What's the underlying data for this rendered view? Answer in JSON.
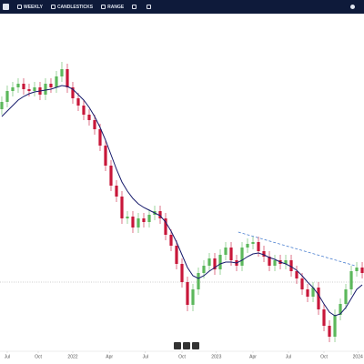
{
  "toolbar": [
    "WEEKLY",
    "CANDLESTICKS",
    "RANGE"
  ],
  "chart_data": {
    "type": "candlestick",
    "up_color": "#5cb85c",
    "down_color": "#c8173a",
    "ma_color": "#161a6b",
    "trend_color": "#4a7fd0",
    "reference_color": "#999999",
    "ylim": [
      15,
      385
    ],
    "xlim": [
      -0.33,
      66.33
    ],
    "xticks": [
      {
        "value": 1,
        "label": "Jul"
      },
      {
        "value": 6.67,
        "label": "Oct"
      },
      {
        "value": 13,
        "label": "2022"
      },
      {
        "value": 19.7,
        "label": "Apr"
      },
      {
        "value": 26.3,
        "label": "Jul"
      },
      {
        "value": 33,
        "label": "Oct"
      },
      {
        "value": 39.3,
        "label": "2023"
      },
      {
        "value": 46,
        "label": "Apr"
      },
      {
        "value": 52.5,
        "label": "Jul"
      },
      {
        "value": 59,
        "label": "Oct"
      },
      {
        "value": 65.2,
        "label": "2024"
      }
    ],
    "candles": [
      [
        280,
        294,
        274,
        288
      ],
      [
        288,
        306,
        282,
        300
      ],
      [
        300,
        310,
        294,
        304
      ],
      [
        304,
        314,
        298,
        308
      ],
      [
        308,
        314,
        296,
        302
      ],
      [
        302,
        308,
        294,
        300
      ],
      [
        300,
        310,
        294,
        304
      ],
      [
        304,
        310,
        290,
        296
      ],
      [
        296,
        314,
        290,
        308
      ],
      [
        308,
        314,
        298,
        304
      ],
      [
        304,
        322,
        298,
        316
      ],
      [
        316,
        332,
        310,
        324
      ],
      [
        324,
        330,
        298,
        304
      ],
      [
        304,
        310,
        286,
        292
      ],
      [
        292,
        298,
        278,
        284
      ],
      [
        284,
        290,
        268,
        274
      ],
      [
        274,
        280,
        262,
        268
      ],
      [
        268,
        274,
        252,
        258
      ],
      [
        258,
        264,
        234,
        240
      ],
      [
        240,
        246,
        212,
        218
      ],
      [
        218,
        224,
        190,
        196
      ],
      [
        196,
        202,
        178,
        184
      ],
      [
        184,
        190,
        154,
        160
      ],
      [
        160,
        168,
        154,
        162
      ],
      [
        162,
        168,
        144,
        150
      ],
      [
        150,
        166,
        144,
        160
      ],
      [
        160,
        166,
        150,
        156
      ],
      [
        156,
        170,
        150,
        164
      ],
      [
        164,
        174,
        158,
        168
      ],
      [
        168,
        174,
        154,
        160
      ],
      [
        160,
        166,
        136,
        142
      ],
      [
        142,
        148,
        124,
        130
      ],
      [
        130,
        136,
        104,
        110
      ],
      [
        110,
        116,
        84,
        90
      ],
      [
        90,
        96,
        58,
        65
      ],
      [
        65,
        88,
        58,
        82
      ],
      [
        82,
        106,
        76,
        100
      ],
      [
        100,
        114,
        94,
        108
      ],
      [
        108,
        122,
        102,
        116
      ],
      [
        116,
        122,
        98,
        104
      ],
      [
        104,
        126,
        98,
        120
      ],
      [
        120,
        134,
        114,
        128
      ],
      [
        128,
        134,
        108,
        114
      ],
      [
        114,
        120,
        102,
        108
      ],
      [
        108,
        134,
        102,
        128
      ],
      [
        128,
        138,
        122,
        132
      ],
      [
        132,
        140,
        126,
        134
      ],
      [
        134,
        140,
        118,
        124
      ],
      [
        124,
        130,
        112,
        118
      ],
      [
        118,
        124,
        102,
        108
      ],
      [
        108,
        120,
        102,
        114
      ],
      [
        114,
        120,
        104,
        110
      ],
      [
        110,
        120,
        104,
        114
      ],
      [
        114,
        120,
        96,
        102
      ],
      [
        102,
        108,
        88,
        94
      ],
      [
        94,
        100,
        76,
        82
      ],
      [
        82,
        88,
        68,
        74
      ],
      [
        74,
        90,
        68,
        84
      ],
      [
        84,
        90,
        54,
        60
      ],
      [
        60,
        66,
        36,
        42
      ],
      [
        42,
        48,
        24,
        30
      ],
      [
        30,
        60,
        24,
        54
      ],
      [
        54,
        72,
        48,
        66
      ],
      [
        66,
        88,
        60,
        82
      ],
      [
        82,
        108,
        76,
        102
      ],
      [
        102,
        112,
        96,
        106
      ],
      [
        106,
        112,
        94,
        100
      ]
    ],
    "moving_average": [
      272,
      278,
      284,
      290,
      294,
      297,
      299,
      300,
      301,
      302,
      304,
      306,
      305,
      302,
      296,
      290,
      282,
      272,
      260,
      246,
      230,
      214,
      200,
      190,
      182,
      176,
      172,
      169,
      166,
      163,
      156,
      146,
      134,
      120,
      106,
      97,
      94,
      97,
      102,
      106,
      110,
      112,
      112,
      111,
      114,
      118,
      121,
      122,
      120,
      117,
      115,
      112,
      110,
      107,
      103,
      97,
      90,
      84,
      76,
      66,
      57,
      53,
      55,
      62,
      72,
      82,
      87
    ],
    "trendline": {
      "x": [
        43.3,
        64.7
      ],
      "y": [
        145,
        108
      ]
    },
    "reference_line": 90
  }
}
